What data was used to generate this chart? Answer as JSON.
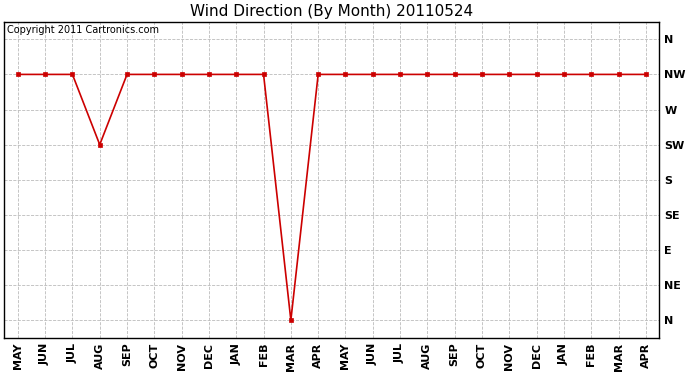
{
  "title": "Wind Direction (By Month) 20110524",
  "copyright_text": "Copyright 2011 Cartronics.com",
  "x_labels": [
    "MAY",
    "JUN",
    "JUL",
    "AUG",
    "SEP",
    "OCT",
    "NOV",
    "DEC",
    "JAN",
    "FEB",
    "MAR",
    "APR",
    "MAY",
    "JUN",
    "JUL",
    "AUG",
    "SEP",
    "OCT",
    "NOV",
    "DEC",
    "JAN",
    "FEB",
    "MAR",
    "APR"
  ],
  "y_tick_vals": [
    0,
    1,
    2,
    3,
    4,
    5,
    6,
    7,
    8
  ],
  "y_tick_labels": [
    "N",
    "NE",
    "E",
    "SE",
    "S",
    "SW",
    "W",
    "NW",
    "N"
  ],
  "y_data": [
    7,
    7,
    7,
    5,
    7,
    7,
    7,
    7,
    7,
    7,
    0,
    7,
    7,
    7,
    7,
    7,
    7,
    7,
    7,
    7,
    7,
    7,
    7,
    7
  ],
  "line_color": "#cc0000",
  "marker_color": "#cc0000",
  "bg_color": "#ffffff",
  "grid_color": "#bbbbbb",
  "title_fontsize": 11,
  "tick_fontsize": 8,
  "copyright_fontsize": 7
}
